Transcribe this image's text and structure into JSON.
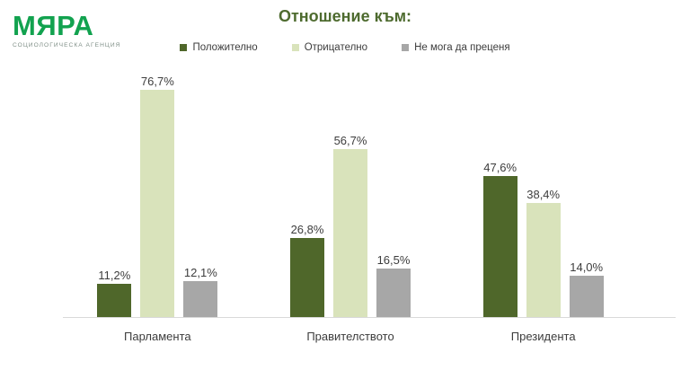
{
  "logo": {
    "name": "МЯРА",
    "tagline": "СОЦИОЛОГИЧЕСКА АГЕНЦИЯ"
  },
  "header": {
    "title": "Отношение към:"
  },
  "colors": {
    "logo_green": "#12a24f",
    "title_green": "#4e6b2f",
    "positive": "#4f672a",
    "negative": "#d9e3bb",
    "neutral": "#a7a7a7",
    "label_text": "#3d3d3d",
    "axis_line": "#d9d9d9",
    "background": "#ffffff"
  },
  "chart_data": {
    "type": "bar",
    "title": "Отношение към:",
    "categories": [
      "Парламента",
      "Правителството",
      "Президента"
    ],
    "series": [
      {
        "name": "Положително",
        "color": "#4f672a",
        "values": [
          11.2,
          26.8,
          47.6
        ],
        "labels": [
          "11,2%",
          "26,8%",
          "47,6%"
        ]
      },
      {
        "name": "Отрицателно",
        "color": "#d9e3bb",
        "values": [
          76.7,
          56.7,
          38.4
        ],
        "labels": [
          "76,7%",
          "56,7%",
          "38,4%"
        ]
      },
      {
        "name": "Не мога да преценя",
        "color": "#a7a7a7",
        "values": [
          12.1,
          16.5,
          14.0
        ],
        "labels": [
          "12,1%",
          "16,5%",
          "14,0%"
        ]
      }
    ],
    "ylim": [
      0,
      80
    ],
    "grid": false,
    "y_axis_visible": false,
    "legend_position": "top",
    "value_label_format": "percent-comma-decimal"
  }
}
